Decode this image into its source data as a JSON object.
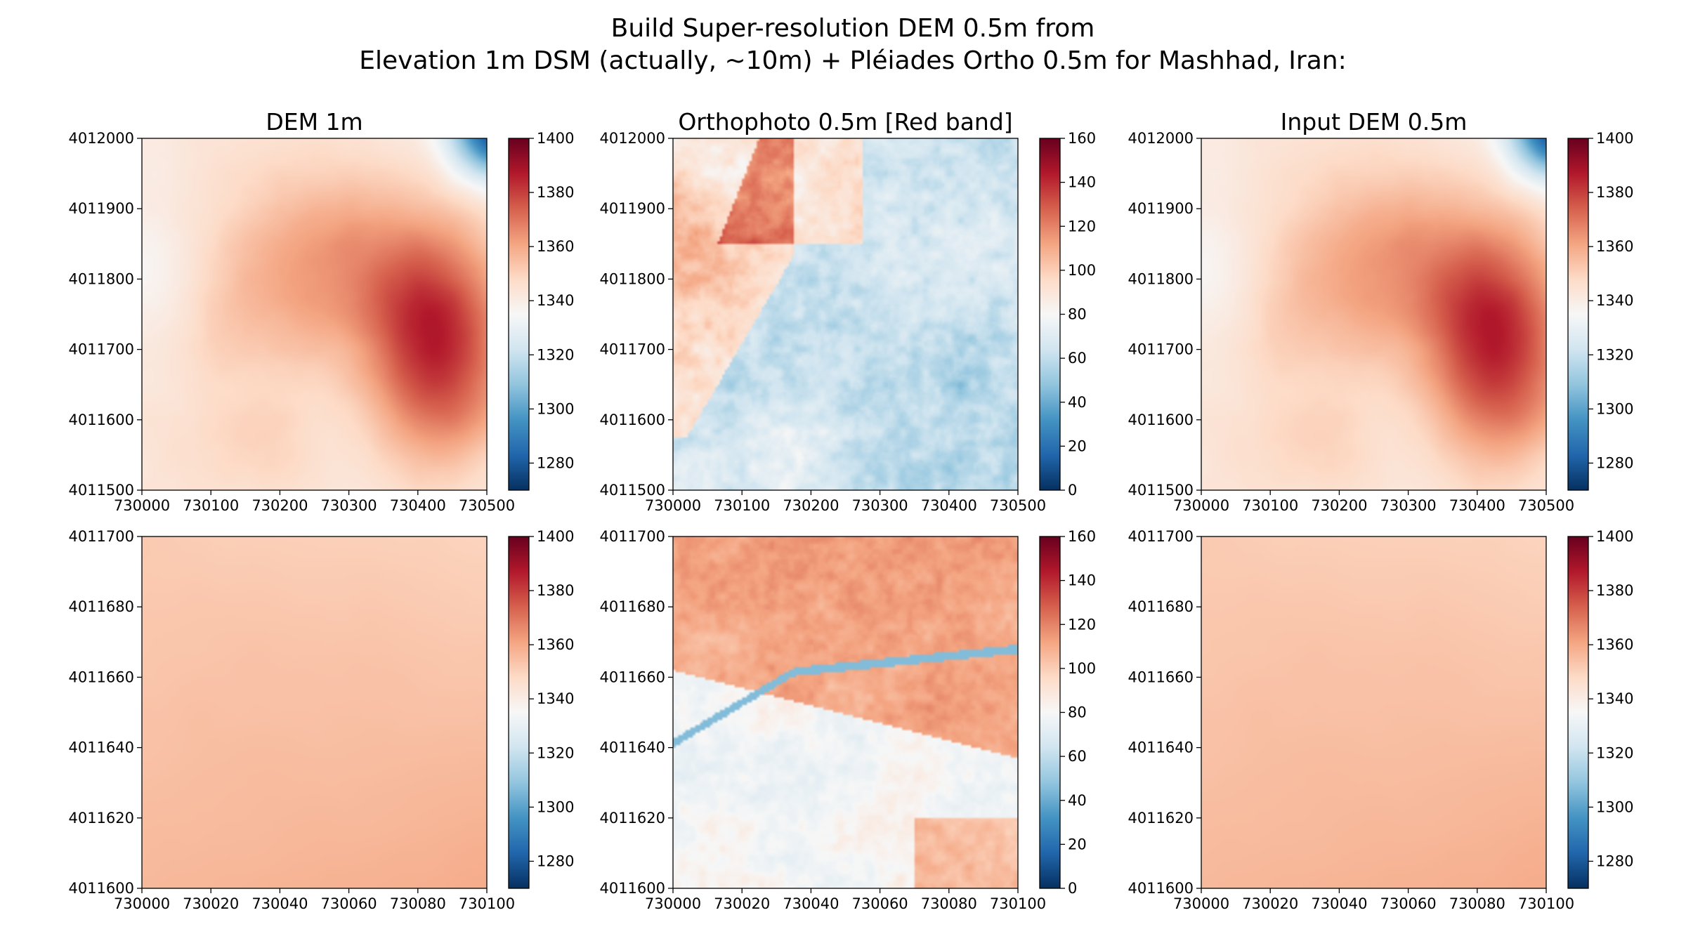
{
  "figure": {
    "title_line1": "Build Super-resolution DEM 0.5m from",
    "title_line2": "Elevation 1m DSM (actually, ~10m) + Pléiades Ortho 0.5m for Mashhad, Iran:"
  },
  "colormap": {
    "name": "RdBu_r",
    "stops": [
      "#053061",
      "#2166ac",
      "#4393c3",
      "#92c5de",
      "#d1e5f0",
      "#f7f7f7",
      "#fddbc7",
      "#f4a582",
      "#d6604d",
      "#b2182b",
      "#67001f"
    ]
  },
  "chart_data": [
    {
      "type": "heatmap",
      "title": "DEM 1m",
      "row": 0,
      "col": 0,
      "field": "dem",
      "xlim": [
        730000,
        730500
      ],
      "ylim": [
        4011500,
        4012000
      ],
      "xticks": [
        "730000",
        "730100",
        "730200",
        "730300",
        "730400",
        "730500"
      ],
      "yticks": [
        "4011500",
        "4011600",
        "4011700",
        "4011800",
        "4011900",
        "4012000"
      ],
      "clim": [
        1270,
        1400
      ],
      "cticks": [
        "1280",
        "1300",
        "1320",
        "1340",
        "1360",
        "1380",
        "1400"
      ],
      "cticks_values": [
        1280,
        1300,
        1320,
        1340,
        1360,
        1380,
        1400
      ]
    },
    {
      "type": "heatmap",
      "title": "Orthophoto 0.5m [Red band]",
      "row": 0,
      "col": 1,
      "field": "ortho",
      "xlim": [
        730000,
        730500
      ],
      "ylim": [
        4011500,
        4012000
      ],
      "xticks": [
        "730000",
        "730100",
        "730200",
        "730300",
        "730400",
        "730500"
      ],
      "yticks": [
        "4011500",
        "4011600",
        "4011700",
        "4011800",
        "4011900",
        "4012000"
      ],
      "clim": [
        0,
        160
      ],
      "cticks": [
        "0",
        "20",
        "40",
        "60",
        "80",
        "100",
        "120",
        "140",
        "160"
      ],
      "cticks_values": [
        0,
        20,
        40,
        60,
        80,
        100,
        120,
        140,
        160
      ]
    },
    {
      "type": "heatmap",
      "title": "Input DEM 0.5m",
      "row": 0,
      "col": 2,
      "field": "dem",
      "xlim": [
        730000,
        730500
      ],
      "ylim": [
        4011500,
        4012000
      ],
      "xticks": [
        "730000",
        "730100",
        "730200",
        "730300",
        "730400",
        "730500"
      ],
      "yticks": [
        "4011500",
        "4011600",
        "4011700",
        "4011800",
        "4011900",
        "4012000"
      ],
      "clim": [
        1270,
        1400
      ],
      "cticks": [
        "1280",
        "1300",
        "1320",
        "1340",
        "1360",
        "1380",
        "1400"
      ],
      "cticks_values": [
        1280,
        1300,
        1320,
        1340,
        1360,
        1380,
        1400
      ]
    },
    {
      "type": "heatmap",
      "title": "",
      "row": 1,
      "col": 0,
      "field": "demzoom",
      "xlim": [
        730000,
        730100
      ],
      "ylim": [
        4011600,
        4011700
      ],
      "xticks": [
        "730000",
        "730020",
        "730040",
        "730060",
        "730080",
        "730100"
      ],
      "yticks": [
        "4011600",
        "4011620",
        "4011640",
        "4011660",
        "4011680",
        "4011700"
      ],
      "clim": [
        1270,
        1400
      ],
      "cticks": [
        "1280",
        "1300",
        "1320",
        "1340",
        "1360",
        "1380",
        "1400"
      ],
      "cticks_values": [
        1280,
        1300,
        1320,
        1340,
        1360,
        1380,
        1400
      ]
    },
    {
      "type": "heatmap",
      "title": "",
      "row": 1,
      "col": 1,
      "field": "orthozoom",
      "xlim": [
        730000,
        730100
      ],
      "ylim": [
        4011600,
        4011700
      ],
      "xticks": [
        "730000",
        "730020",
        "730040",
        "730060",
        "730080",
        "730100"
      ],
      "yticks": [
        "4011600",
        "4011620",
        "4011640",
        "4011660",
        "4011680",
        "4011700"
      ],
      "clim": [
        0,
        160
      ],
      "cticks": [
        "0",
        "20",
        "40",
        "60",
        "80",
        "100",
        "120",
        "140",
        "160"
      ],
      "cticks_values": [
        0,
        20,
        40,
        60,
        80,
        100,
        120,
        140,
        160
      ]
    },
    {
      "type": "heatmap",
      "title": "",
      "row": 1,
      "col": 2,
      "field": "demzoom",
      "xlim": [
        730000,
        730100
      ],
      "ylim": [
        4011600,
        4011700
      ],
      "xticks": [
        "730000",
        "730020",
        "730040",
        "730060",
        "730080",
        "730100"
      ],
      "yticks": [
        "4011600",
        "4011620",
        "4011640",
        "4011660",
        "4011680",
        "4011700"
      ],
      "clim": [
        1270,
        1400
      ],
      "cticks": [
        "1280",
        "1300",
        "1320",
        "1340",
        "1360",
        "1380",
        "1400"
      ],
      "cticks_values": [
        1280,
        1300,
        1320,
        1340,
        1360,
        1380,
        1400
      ]
    }
  ]
}
